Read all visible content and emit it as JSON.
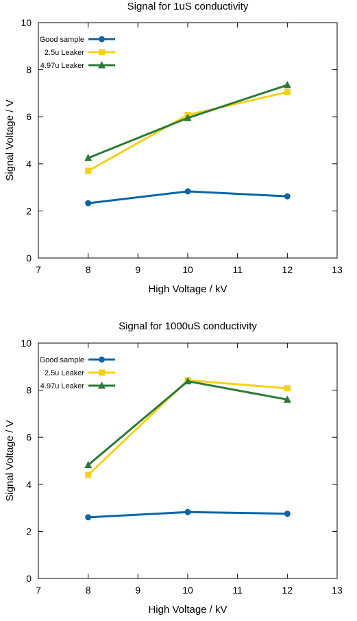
{
  "chart_data": [
    {
      "type": "line",
      "title": "Signal for 1uS conductivity",
      "xlabel": "High Voltage / kV",
      "ylabel": "Signal Voltage / V",
      "xlim": [
        7,
        13
      ],
      "ylim": [
        0,
        10
      ],
      "xticks": [
        7,
        8,
        9,
        10,
        11,
        12,
        13
      ],
      "yticks": [
        0,
        2,
        4,
        6,
        8,
        10
      ],
      "grid": false,
      "legend_position": "top-left",
      "x": [
        8,
        10,
        12
      ],
      "series": [
        {
          "name": "Good sample",
          "color": "#0a64a8",
          "marker": "circle",
          "values": [
            2.33,
            2.83,
            2.62
          ]
        },
        {
          "name": "2.5u Leaker",
          "color": "#f7d117",
          "marker": "square",
          "values": [
            3.7,
            6.08,
            7.05
          ]
        },
        {
          "name": "4.97u Leaker",
          "color": "#2b7a36",
          "marker": "triangle",
          "values": [
            4.25,
            5.95,
            7.35
          ]
        }
      ]
    },
    {
      "type": "line",
      "title": "Signal for 1000uS conductivity",
      "xlabel": "High Voltage / kV",
      "ylabel": "Signal Voltage / V",
      "xlim": [
        7,
        13
      ],
      "ylim": [
        0,
        10
      ],
      "xticks": [
        7,
        8,
        9,
        10,
        11,
        12,
        13
      ],
      "yticks": [
        0,
        2,
        4,
        6,
        8,
        10
      ],
      "grid": false,
      "legend_position": "top-left",
      "x": [
        8,
        10,
        12
      ],
      "series": [
        {
          "name": "Good sample",
          "color": "#0a64a8",
          "marker": "circle",
          "values": [
            2.6,
            2.82,
            2.75
          ]
        },
        {
          "name": "2.5u Leaker",
          "color": "#f7d117",
          "marker": "square",
          "values": [
            4.4,
            8.42,
            8.08
          ]
        },
        {
          "name": "4.97u Leaker",
          "color": "#2b7a36",
          "marker": "triangle",
          "values": [
            4.82,
            8.38,
            7.6
          ]
        }
      ]
    }
  ]
}
